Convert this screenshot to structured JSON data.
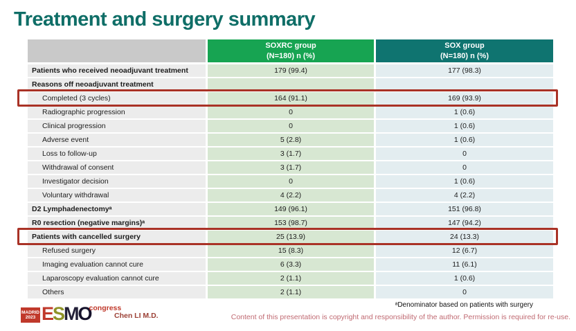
{
  "title": "Treatment and surgery summary",
  "table": {
    "columns": [
      {
        "name": "",
        "sub": ""
      },
      {
        "name": "SOXRC group",
        "sub": "(N=180)  n (%)"
      },
      {
        "name": "SOX group",
        "sub": "(N=180)  n (%)"
      }
    ],
    "rows": [
      {
        "label": "Patients who received neoadjuvant treatment",
        "bold": true,
        "indent": false,
        "soxrc": "179 (99.4)",
        "sox": "177 (98.3)",
        "highlight": false
      },
      {
        "label": "Reasons off neoadjuvant treatment",
        "bold": true,
        "indent": false,
        "soxrc": "",
        "sox": "",
        "highlight": false
      },
      {
        "label": "Completed (3 cycles)",
        "bold": false,
        "indent": true,
        "soxrc": "164 (91.1)",
        "sox": "169 (93.9)",
        "highlight": true
      },
      {
        "label": "Radiographic progression",
        "bold": false,
        "indent": true,
        "soxrc": "0",
        "sox": "1 (0.6)",
        "highlight": false
      },
      {
        "label": "Clinical progression",
        "bold": false,
        "indent": true,
        "soxrc": "0",
        "sox": "1 (0.6)",
        "highlight": false
      },
      {
        "label": "Adverse event",
        "bold": false,
        "indent": true,
        "soxrc": "5 (2.8)",
        "sox": "1 (0.6)",
        "highlight": false
      },
      {
        "label": "Loss to follow-up",
        "bold": false,
        "indent": true,
        "soxrc": "3 (1.7)",
        "sox": "0",
        "highlight": false
      },
      {
        "label": "Withdrawal of consent",
        "bold": false,
        "indent": true,
        "soxrc": "3 (1.7)",
        "sox": "0",
        "highlight": false
      },
      {
        "label": "Investigator decision",
        "bold": false,
        "indent": true,
        "soxrc": "0",
        "sox": "1 (0.6)",
        "highlight": false
      },
      {
        "label": "Voluntary withdrawal",
        "bold": false,
        "indent": true,
        "soxrc": "4 (2.2)",
        "sox": "4 (2.2)",
        "highlight": false
      },
      {
        "label": "D2 Lymphadenectomyᵃ",
        "bold": true,
        "indent": false,
        "soxrc": "149 (96.1)",
        "sox": "151 (96.8)",
        "highlight": false
      },
      {
        "label": "R0 resection (negative margins)ᵃ",
        "bold": true,
        "indent": false,
        "soxrc": "153 (98.7)",
        "sox": "147 (94.2)",
        "highlight": false
      },
      {
        "label": "Patients with cancelled surgery",
        "bold": true,
        "indent": false,
        "soxrc": "25 (13.9)",
        "sox": "24 (13.3)",
        "highlight": true
      },
      {
        "label": "Refused surgery",
        "bold": false,
        "indent": true,
        "soxrc": "15 (8.3)",
        "sox": "12 (6.7)",
        "highlight": false
      },
      {
        "label": "Imaging evaluation cannot cure",
        "bold": false,
        "indent": true,
        "soxrc": "6 (3.3)",
        "sox": "11 (6.1)",
        "highlight": false
      },
      {
        "label": "Laparoscopy evaluation cannot cure",
        "bold": false,
        "indent": true,
        "soxrc": "2 (1.1)",
        "sox": "1 (0.6)",
        "highlight": false
      },
      {
        "label": "Others",
        "bold": false,
        "indent": true,
        "soxrc": "2 (1.1)",
        "sox": "0",
        "highlight": false
      }
    ]
  },
  "footer": {
    "footnote": "ᵃDenominator based on patients with surgery",
    "author": "Chen LI M.D.",
    "copyright": "Content of this presentation is copyright and responsibility of the author. Permission is required for re-use.",
    "logo": {
      "badge_line1": "MADRID",
      "badge_line2": "2023",
      "letters": [
        "E",
        "S",
        "M",
        "O"
      ],
      "congress": "congress"
    }
  },
  "colors": {
    "title": "#0f6e67",
    "header_soxrc": "#17a452",
    "header_sox": "#0f7470",
    "header_label": "#c9c9c9",
    "cell_label": "#ececec",
    "cell_soxrc": "#d7e7d2",
    "cell_sox": "#e3edf0",
    "highlight_border": "#a93226",
    "logo_red": "#c0392b",
    "logo_olive": "#8f9328",
    "copyright_text": "#c06a72",
    "author_text": "#9c4136"
  }
}
